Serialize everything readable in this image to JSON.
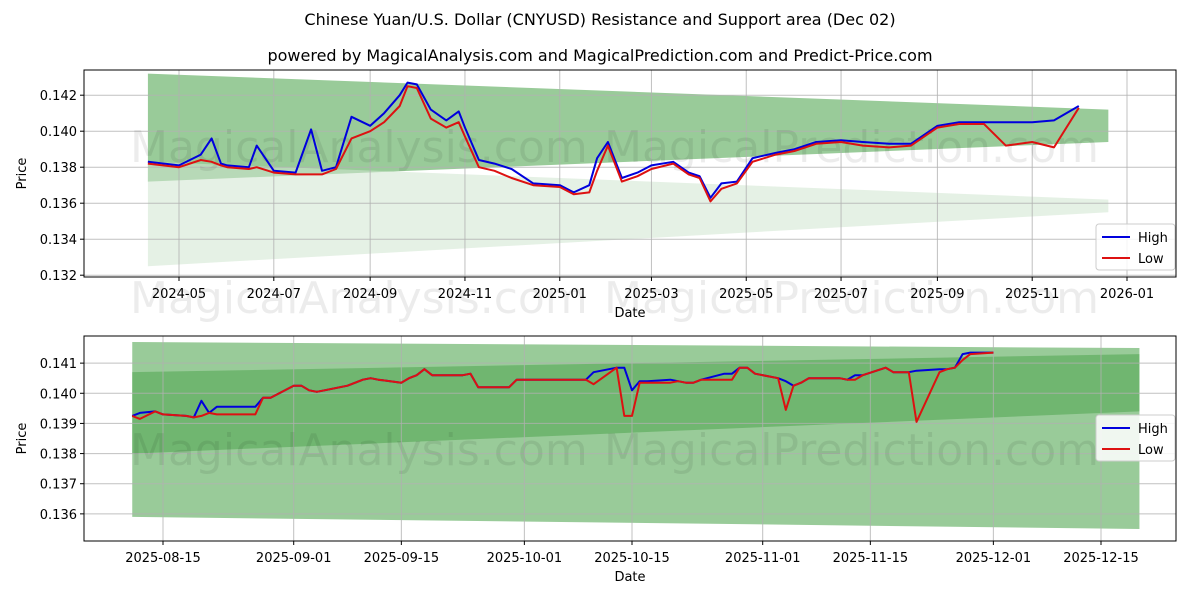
{
  "title": "Chinese Yuan/U.S. Dollar (CNYUSD) Resistance and Support area (Dec 02)",
  "subtitle": "powered by MagicalAnalysis.com and MagicalPrediction.com and Predict-Price.com",
  "watermarks": [
    "MagicalAnalysis.com",
    "MagicalPrediction.com"
  ],
  "colors": {
    "high": "#0000dd",
    "low": "#dd1111",
    "band_dark": "#5fae60",
    "band_light": "#a8d3a8",
    "grid": "#b0b0b0"
  },
  "chart_data": [
    {
      "type": "line",
      "title": "",
      "xlabel": "Date",
      "ylabel": "Price",
      "ylim": [
        0.1319,
        0.1434
      ],
      "x_ticks": [
        "2024-05",
        "2024-07",
        "2024-09",
        "2024-11",
        "2025-01",
        "2025-03",
        "2025-05",
        "2025-07",
        "2025-09",
        "2025-11",
        "2026-01"
      ],
      "y_ticks": [
        "0.132",
        "0.134",
        "0.136",
        "0.138",
        "0.140",
        "0.142"
      ],
      "grid": true,
      "legend": {
        "position": "lower right",
        "entries": [
          "High",
          "Low"
        ]
      },
      "bands": [
        {
          "name": "resistance",
          "x_start": "2024-04-11",
          "x_end": "2025-12-20",
          "upper": [
            0.1432,
            0.1412
          ],
          "lower": [
            0.1372,
            0.1394
          ]
        },
        {
          "name": "support",
          "x_start": "2024-04-11",
          "x_end": "2025-12-20",
          "upper": [
            0.1383,
            0.1362
          ],
          "lower": [
            0.1325,
            0.1355
          ]
        }
      ],
      "series": [
        {
          "name": "High",
          "x": [
            "2024-04-11",
            "2024-05-01",
            "2024-05-15",
            "2024-05-22",
            "2024-05-28",
            "2024-06-01",
            "2024-06-15",
            "2024-06-20",
            "2024-07-01",
            "2024-07-15",
            "2024-07-25",
            "2024-08-01",
            "2024-08-10",
            "2024-08-20",
            "2024-09-01",
            "2024-09-10",
            "2024-09-20",
            "2024-09-25",
            "2024-10-01",
            "2024-10-10",
            "2024-10-20",
            "2024-10-28",
            "2024-11-01",
            "2024-11-10",
            "2024-11-20",
            "2024-12-01",
            "2024-12-15",
            "2025-01-01",
            "2025-01-10",
            "2025-01-20",
            "2025-01-25",
            "2025-02-01",
            "2025-02-10",
            "2025-02-20",
            "2025-03-01",
            "2025-03-15",
            "2025-03-25",
            "2025-04-01",
            "2025-04-08",
            "2025-04-15",
            "2025-04-25",
            "2025-05-05",
            "2025-05-20",
            "2025-06-01",
            "2025-06-15",
            "2025-07-01",
            "2025-07-15",
            "2025-08-01",
            "2025-08-15",
            "2025-09-01",
            "2025-09-15",
            "2025-10-01",
            "2025-10-15",
            "2025-11-01",
            "2025-11-15",
            "2025-12-01"
          ],
          "values": [
            0.1383,
            0.1381,
            0.1387,
            0.1396,
            0.1382,
            0.1381,
            0.138,
            0.1392,
            0.1378,
            0.1377,
            0.1401,
            0.1378,
            0.138,
            0.1408,
            0.1403,
            0.141,
            0.142,
            0.1427,
            0.1426,
            0.1412,
            0.1406,
            0.1411,
            0.1402,
            0.1384,
            0.1382,
            0.1379,
            0.1371,
            0.137,
            0.1366,
            0.137,
            0.1385,
            0.1394,
            0.1374,
            0.1377,
            0.1381,
            0.1383,
            0.1377,
            0.1375,
            0.1363,
            0.1371,
            0.1372,
            0.1385,
            0.1388,
            0.139,
            0.1394,
            0.1395,
            0.1394,
            0.1393,
            0.1393,
            0.1403,
            0.1405,
            0.1405,
            0.1405,
            0.1405,
            0.1406,
            0.1414
          ]
        },
        {
          "name": "Low",
          "x": [
            "2024-04-11",
            "2024-05-01",
            "2024-05-15",
            "2024-05-22",
            "2024-05-28",
            "2024-06-01",
            "2024-06-15",
            "2024-06-20",
            "2024-07-01",
            "2024-07-15",
            "2024-07-25",
            "2024-08-01",
            "2024-08-10",
            "2024-08-20",
            "2024-09-01",
            "2024-09-10",
            "2024-09-20",
            "2024-09-25",
            "2024-10-01",
            "2024-10-10",
            "2024-10-20",
            "2024-10-28",
            "2024-11-01",
            "2024-11-10",
            "2024-11-20",
            "2024-12-01",
            "2024-12-15",
            "2025-01-01",
            "2025-01-10",
            "2025-01-20",
            "2025-01-25",
            "2025-02-01",
            "2025-02-10",
            "2025-02-20",
            "2025-03-01",
            "2025-03-15",
            "2025-03-25",
            "2025-04-01",
            "2025-04-08",
            "2025-04-15",
            "2025-04-25",
            "2025-05-05",
            "2025-05-20",
            "2025-06-01",
            "2025-06-15",
            "2025-07-01",
            "2025-07-15",
            "2025-08-01",
            "2025-08-15",
            "2025-09-01",
            "2025-09-15",
            "2025-10-01",
            "2025-10-15",
            "2025-11-01",
            "2025-11-15",
            "2025-12-01"
          ],
          "values": [
            0.1382,
            0.138,
            0.1384,
            0.1383,
            0.1381,
            0.138,
            0.1379,
            0.138,
            0.1377,
            0.1376,
            0.1376,
            0.1376,
            0.1379,
            0.1396,
            0.14,
            0.1405,
            0.1414,
            0.1425,
            0.1424,
            0.1407,
            0.1402,
            0.1405,
            0.1397,
            0.138,
            0.1378,
            0.1374,
            0.137,
            0.1369,
            0.1365,
            0.1366,
            0.1378,
            0.1392,
            0.1372,
            0.1375,
            0.1379,
            0.1382,
            0.1376,
            0.1374,
            0.1361,
            0.1368,
            0.1371,
            0.1383,
            0.1387,
            0.1389,
            0.1393,
            0.1394,
            0.1392,
            0.1391,
            0.1392,
            0.1402,
            0.1404,
            0.1404,
            0.1392,
            0.1394,
            0.1391,
            0.1413
          ]
        }
      ]
    },
    {
      "type": "line",
      "title": "",
      "xlabel": "Date",
      "ylabel": "Price",
      "ylim": [
        0.1351,
        0.1419
      ],
      "x_ticks": [
        "2025-08-15",
        "2025-09-01",
        "2025-09-15",
        "2025-10-01",
        "2025-10-15",
        "2025-11-01",
        "2025-11-15",
        "2025-12-01",
        "2025-12-15"
      ],
      "y_ticks": [
        "0.136",
        "0.137",
        "0.138",
        "0.139",
        "0.140",
        "0.141"
      ],
      "grid": true,
      "legend": {
        "position": "center right",
        "entries": [
          "High",
          "Low"
        ]
      },
      "bands": [
        {
          "name": "resistance",
          "x_start": "2025-08-11",
          "x_end": "2025-12-20",
          "upper": [
            0.1417,
            0.1415
          ],
          "lower": [
            0.138,
            0.1394
          ]
        },
        {
          "name": "support",
          "x_start": "2025-08-11",
          "x_end": "2025-12-20",
          "upper": [
            0.1407,
            0.1413
          ],
          "lower": [
            0.1359,
            0.1355
          ]
        }
      ],
      "series": [
        {
          "name": "High",
          "x": [
            "2025-08-11",
            "2025-08-12",
            "2025-08-14",
            "2025-08-15",
            "2025-08-18",
            "2025-08-19",
            "2025-08-20",
            "2025-08-21",
            "2025-08-22",
            "2025-08-25",
            "2025-08-26",
            "2025-08-27",
            "2025-08-28",
            "2025-08-29",
            "2025-09-01",
            "2025-09-02",
            "2025-09-03",
            "2025-09-04",
            "2025-09-05",
            "2025-09-08",
            "2025-09-09",
            "2025-09-10",
            "2025-09-11",
            "2025-09-12",
            "2025-09-15",
            "2025-09-16",
            "2025-09-17",
            "2025-09-18",
            "2025-09-19",
            "2025-09-22",
            "2025-09-23",
            "2025-09-24",
            "2025-09-25",
            "2025-09-26",
            "2025-09-29",
            "2025-09-30",
            "2025-10-09",
            "2025-10-10",
            "2025-10-13",
            "2025-10-14",
            "2025-10-15",
            "2025-10-16",
            "2025-10-17",
            "2025-10-20",
            "2025-10-21",
            "2025-10-22",
            "2025-10-23",
            "2025-10-24",
            "2025-10-27",
            "2025-10-28",
            "2025-10-29",
            "2025-10-30",
            "2025-10-31",
            "2025-11-03",
            "2025-11-04",
            "2025-11-05",
            "2025-11-06",
            "2025-11-07",
            "2025-11-10",
            "2025-11-11",
            "2025-11-12",
            "2025-11-13",
            "2025-11-14",
            "2025-11-17",
            "2025-11-18",
            "2025-11-19",
            "2025-11-20",
            "2025-11-21",
            "2025-11-24",
            "2025-11-25",
            "2025-11-26",
            "2025-11-27",
            "2025-11-28",
            "2025-12-01"
          ],
          "values": [
            0.13925,
            0.13935,
            0.1394,
            0.1393,
            0.13925,
            0.1392,
            0.13975,
            0.13935,
            0.13955,
            0.13955,
            0.13955,
            0.13955,
            0.13985,
            0.13985,
            0.14025,
            0.14025,
            0.1401,
            0.14005,
            0.1401,
            0.14025,
            0.14035,
            0.14045,
            0.1405,
            0.14045,
            0.14035,
            0.1405,
            0.1406,
            0.1408,
            0.1406,
            0.1406,
            0.1406,
            0.14065,
            0.1402,
            0.1402,
            0.1402,
            0.14045,
            0.14045,
            0.1407,
            0.14085,
            0.14085,
            0.1401,
            0.1404,
            0.1404,
            0.14045,
            0.1404,
            0.14035,
            0.14035,
            0.14045,
            0.14065,
            0.14065,
            0.14085,
            0.14085,
            0.14065,
            0.1405,
            0.1404,
            0.14025,
            0.14035,
            0.1405,
            0.1405,
            0.1405,
            0.14045,
            0.1406,
            0.1406,
            0.14085,
            0.1407,
            0.1407,
            0.1407,
            0.14075,
            0.1408,
            0.1408,
            0.14085,
            0.1413,
            0.14135,
            0.14135
          ]
        },
        {
          "name": "Low",
          "x": [
            "2025-08-11",
            "2025-08-12",
            "2025-08-14",
            "2025-08-15",
            "2025-08-18",
            "2025-08-19",
            "2025-08-20",
            "2025-08-21",
            "2025-08-22",
            "2025-08-25",
            "2025-08-26",
            "2025-08-27",
            "2025-08-28",
            "2025-08-29",
            "2025-09-01",
            "2025-09-02",
            "2025-09-03",
            "2025-09-04",
            "2025-09-05",
            "2025-09-08",
            "2025-09-09",
            "2025-09-10",
            "2025-09-11",
            "2025-09-12",
            "2025-09-15",
            "2025-09-16",
            "2025-09-17",
            "2025-09-18",
            "2025-09-19",
            "2025-09-22",
            "2025-09-23",
            "2025-09-24",
            "2025-09-25",
            "2025-09-26",
            "2025-09-29",
            "2025-09-30",
            "2025-10-09",
            "2025-10-10",
            "2025-10-13",
            "2025-10-14",
            "2025-10-15",
            "2025-10-16",
            "2025-10-17",
            "2025-10-20",
            "2025-10-21",
            "2025-10-22",
            "2025-10-23",
            "2025-10-24",
            "2025-10-27",
            "2025-10-28",
            "2025-10-29",
            "2025-10-30",
            "2025-10-31",
            "2025-11-03",
            "2025-11-04",
            "2025-11-05",
            "2025-11-06",
            "2025-11-07",
            "2025-11-10",
            "2025-11-11",
            "2025-11-12",
            "2025-11-13",
            "2025-11-14",
            "2025-11-17",
            "2025-11-18",
            "2025-11-19",
            "2025-11-20",
            "2025-11-21",
            "2025-11-24",
            "2025-11-25",
            "2025-11-26",
            "2025-11-27",
            "2025-11-28",
            "2025-12-01"
          ],
          "values": [
            0.13925,
            0.13915,
            0.1394,
            0.1393,
            0.13925,
            0.1392,
            0.13925,
            0.13935,
            0.1393,
            0.1393,
            0.1393,
            0.1393,
            0.13985,
            0.13985,
            0.14025,
            0.14025,
            0.1401,
            0.14005,
            0.1401,
            0.14025,
            0.14035,
            0.14045,
            0.1405,
            0.14045,
            0.14035,
            0.1405,
            0.1406,
            0.1408,
            0.1406,
            0.1406,
            0.1406,
            0.14065,
            0.1402,
            0.1402,
            0.1402,
            0.14045,
            0.14045,
            0.1403,
            0.14085,
            0.13925,
            0.13925,
            0.14035,
            0.14035,
            0.14035,
            0.1404,
            0.14035,
            0.14035,
            0.14045,
            0.14045,
            0.14045,
            0.14085,
            0.14085,
            0.14065,
            0.1405,
            0.13945,
            0.14025,
            0.14035,
            0.1405,
            0.1405,
            0.1405,
            0.14045,
            0.14045,
            0.1406,
            0.14085,
            0.1407,
            0.1407,
            0.1407,
            0.13905,
            0.1407,
            0.1408,
            0.14085,
            0.1411,
            0.1413,
            0.14135
          ]
        }
      ]
    }
  ]
}
